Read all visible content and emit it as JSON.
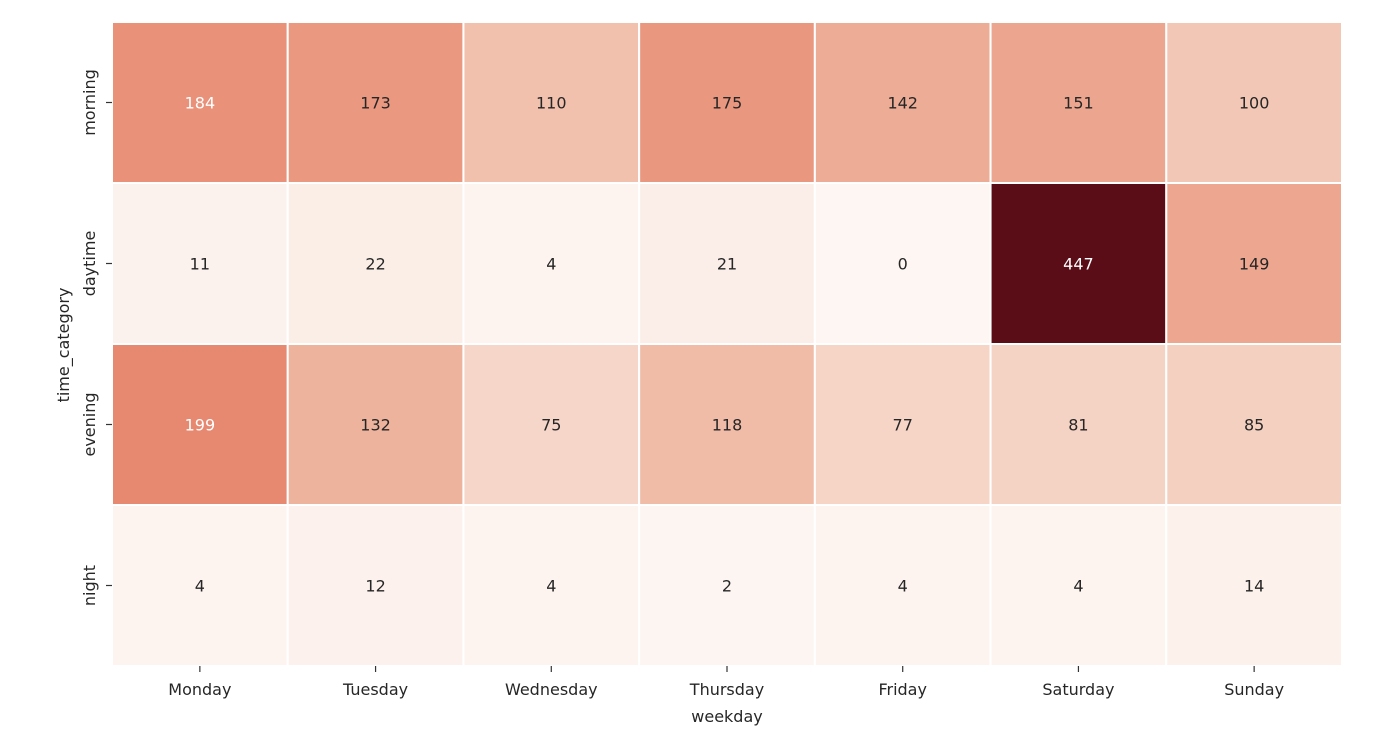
{
  "chart_data": {
    "type": "heatmap",
    "title": "",
    "xlabel": "weekday",
    "ylabel": "time_category",
    "x_categories": [
      "Monday",
      "Tuesday",
      "Wednesday",
      "Thursday",
      "Friday",
      "Saturday",
      "Sunday"
    ],
    "y_categories": [
      "morning",
      "daytime",
      "evening",
      "night"
    ],
    "values": [
      [
        184,
        173,
        110,
        175,
        142,
        151,
        100
      ],
      [
        11,
        22,
        4,
        21,
        0,
        447,
        149
      ],
      [
        199,
        132,
        75,
        118,
        77,
        81,
        85
      ],
      [
        4,
        12,
        4,
        2,
        4,
        4,
        14
      ]
    ],
    "colormap": "Reds",
    "color_range": [
      0,
      447
    ],
    "annotations": true,
    "colorbar": false,
    "grid_line_color": "#ffffff",
    "text_color_dark": "#262626",
    "text_color_light": "#ffffff"
  }
}
